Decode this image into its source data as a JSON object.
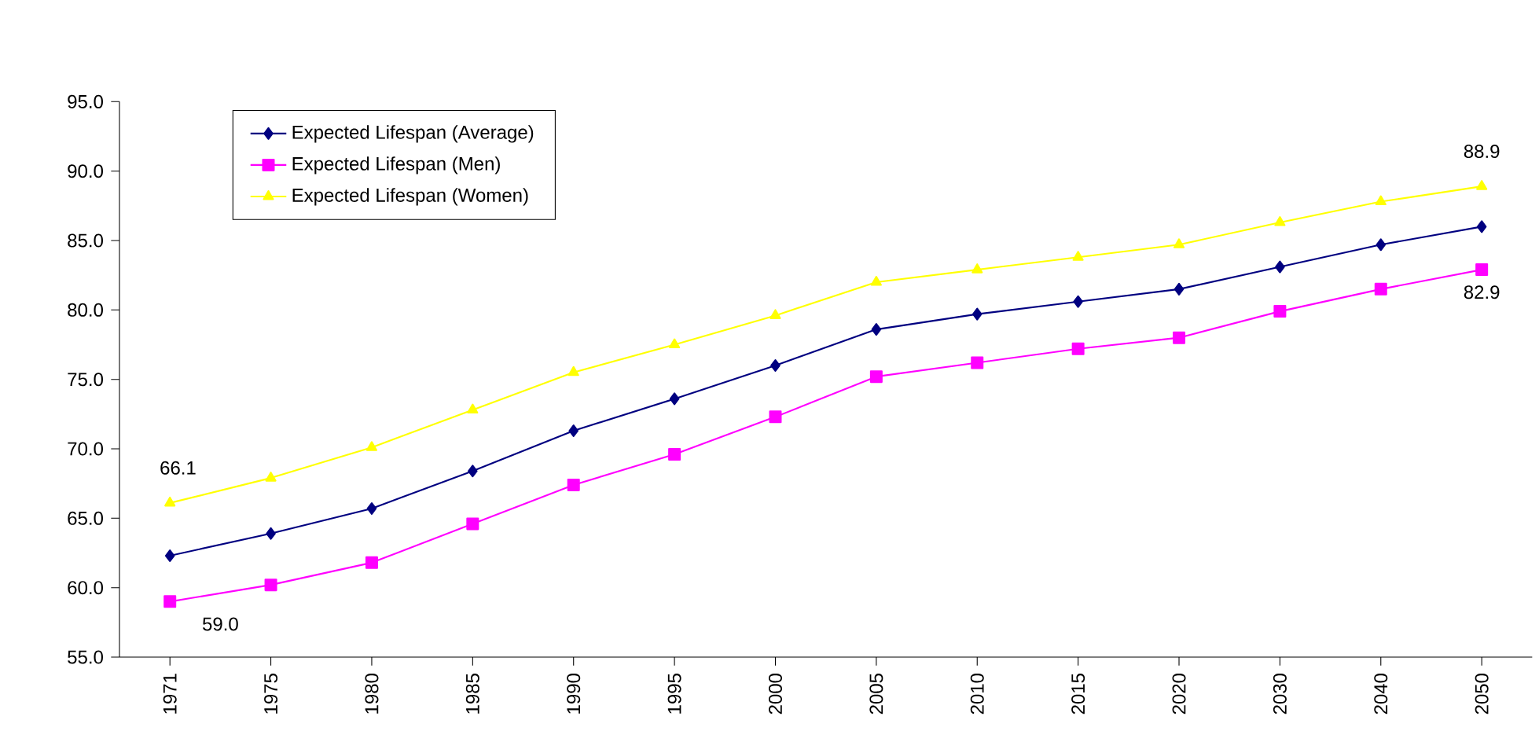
{
  "chart_data": {
    "type": "line",
    "categories": [
      "1971",
      "1975",
      "1980",
      "1985",
      "1990",
      "1995",
      "2000",
      "2005",
      "2010",
      "2015",
      "2020",
      "2030",
      "2040",
      "2050"
    ],
    "series": [
      {
        "name": "Expected Lifespan (Average)",
        "color": "#000080",
        "marker": "diamond",
        "values": [
          62.3,
          63.9,
          65.7,
          68.4,
          71.3,
          73.6,
          76.0,
          78.6,
          79.7,
          80.6,
          81.5,
          83.1,
          84.7,
          86.0
        ]
      },
      {
        "name": "Expected Lifespan (Men)",
        "color": "#ff00ff",
        "marker": "square",
        "values": [
          59.0,
          60.2,
          61.8,
          64.6,
          67.4,
          69.6,
          72.3,
          75.2,
          76.2,
          77.2,
          78.0,
          79.9,
          81.5,
          82.9
        ]
      },
      {
        "name": "Expected Lifespan (Women)",
        "color": "#ffff00",
        "marker": "triangle",
        "values": [
          66.1,
          67.9,
          70.1,
          72.8,
          75.5,
          77.5,
          79.6,
          82.0,
          82.9,
          83.8,
          84.7,
          86.3,
          87.8,
          88.9
        ]
      }
    ],
    "ylim": [
      55,
      95
    ],
    "yticks": [
      {
        "value": 55,
        "label": "55.0"
      },
      {
        "value": 60,
        "label": "60.0"
      },
      {
        "value": 65,
        "label": "65.0"
      },
      {
        "value": 70,
        "label": "70.0"
      },
      {
        "value": 75,
        "label": "75.0"
      },
      {
        "value": 80,
        "label": "80.0"
      },
      {
        "value": 85,
        "label": "85.0"
      },
      {
        "value": 90,
        "label": "90.0"
      },
      {
        "value": 95,
        "label": "95.0"
      }
    ],
    "annotations": [
      {
        "text": "66.1",
        "x": "1971",
        "y": 66.1
      },
      {
        "text": "59.0",
        "x": "1971",
        "y": 59.0
      },
      {
        "text": "88.9",
        "x": "2050",
        "y": 88.9
      },
      {
        "text": "82.9",
        "x": "2050",
        "y": 82.9
      }
    ],
    "legend": "top left",
    "grid": false,
    "line_style": "solid"
  }
}
